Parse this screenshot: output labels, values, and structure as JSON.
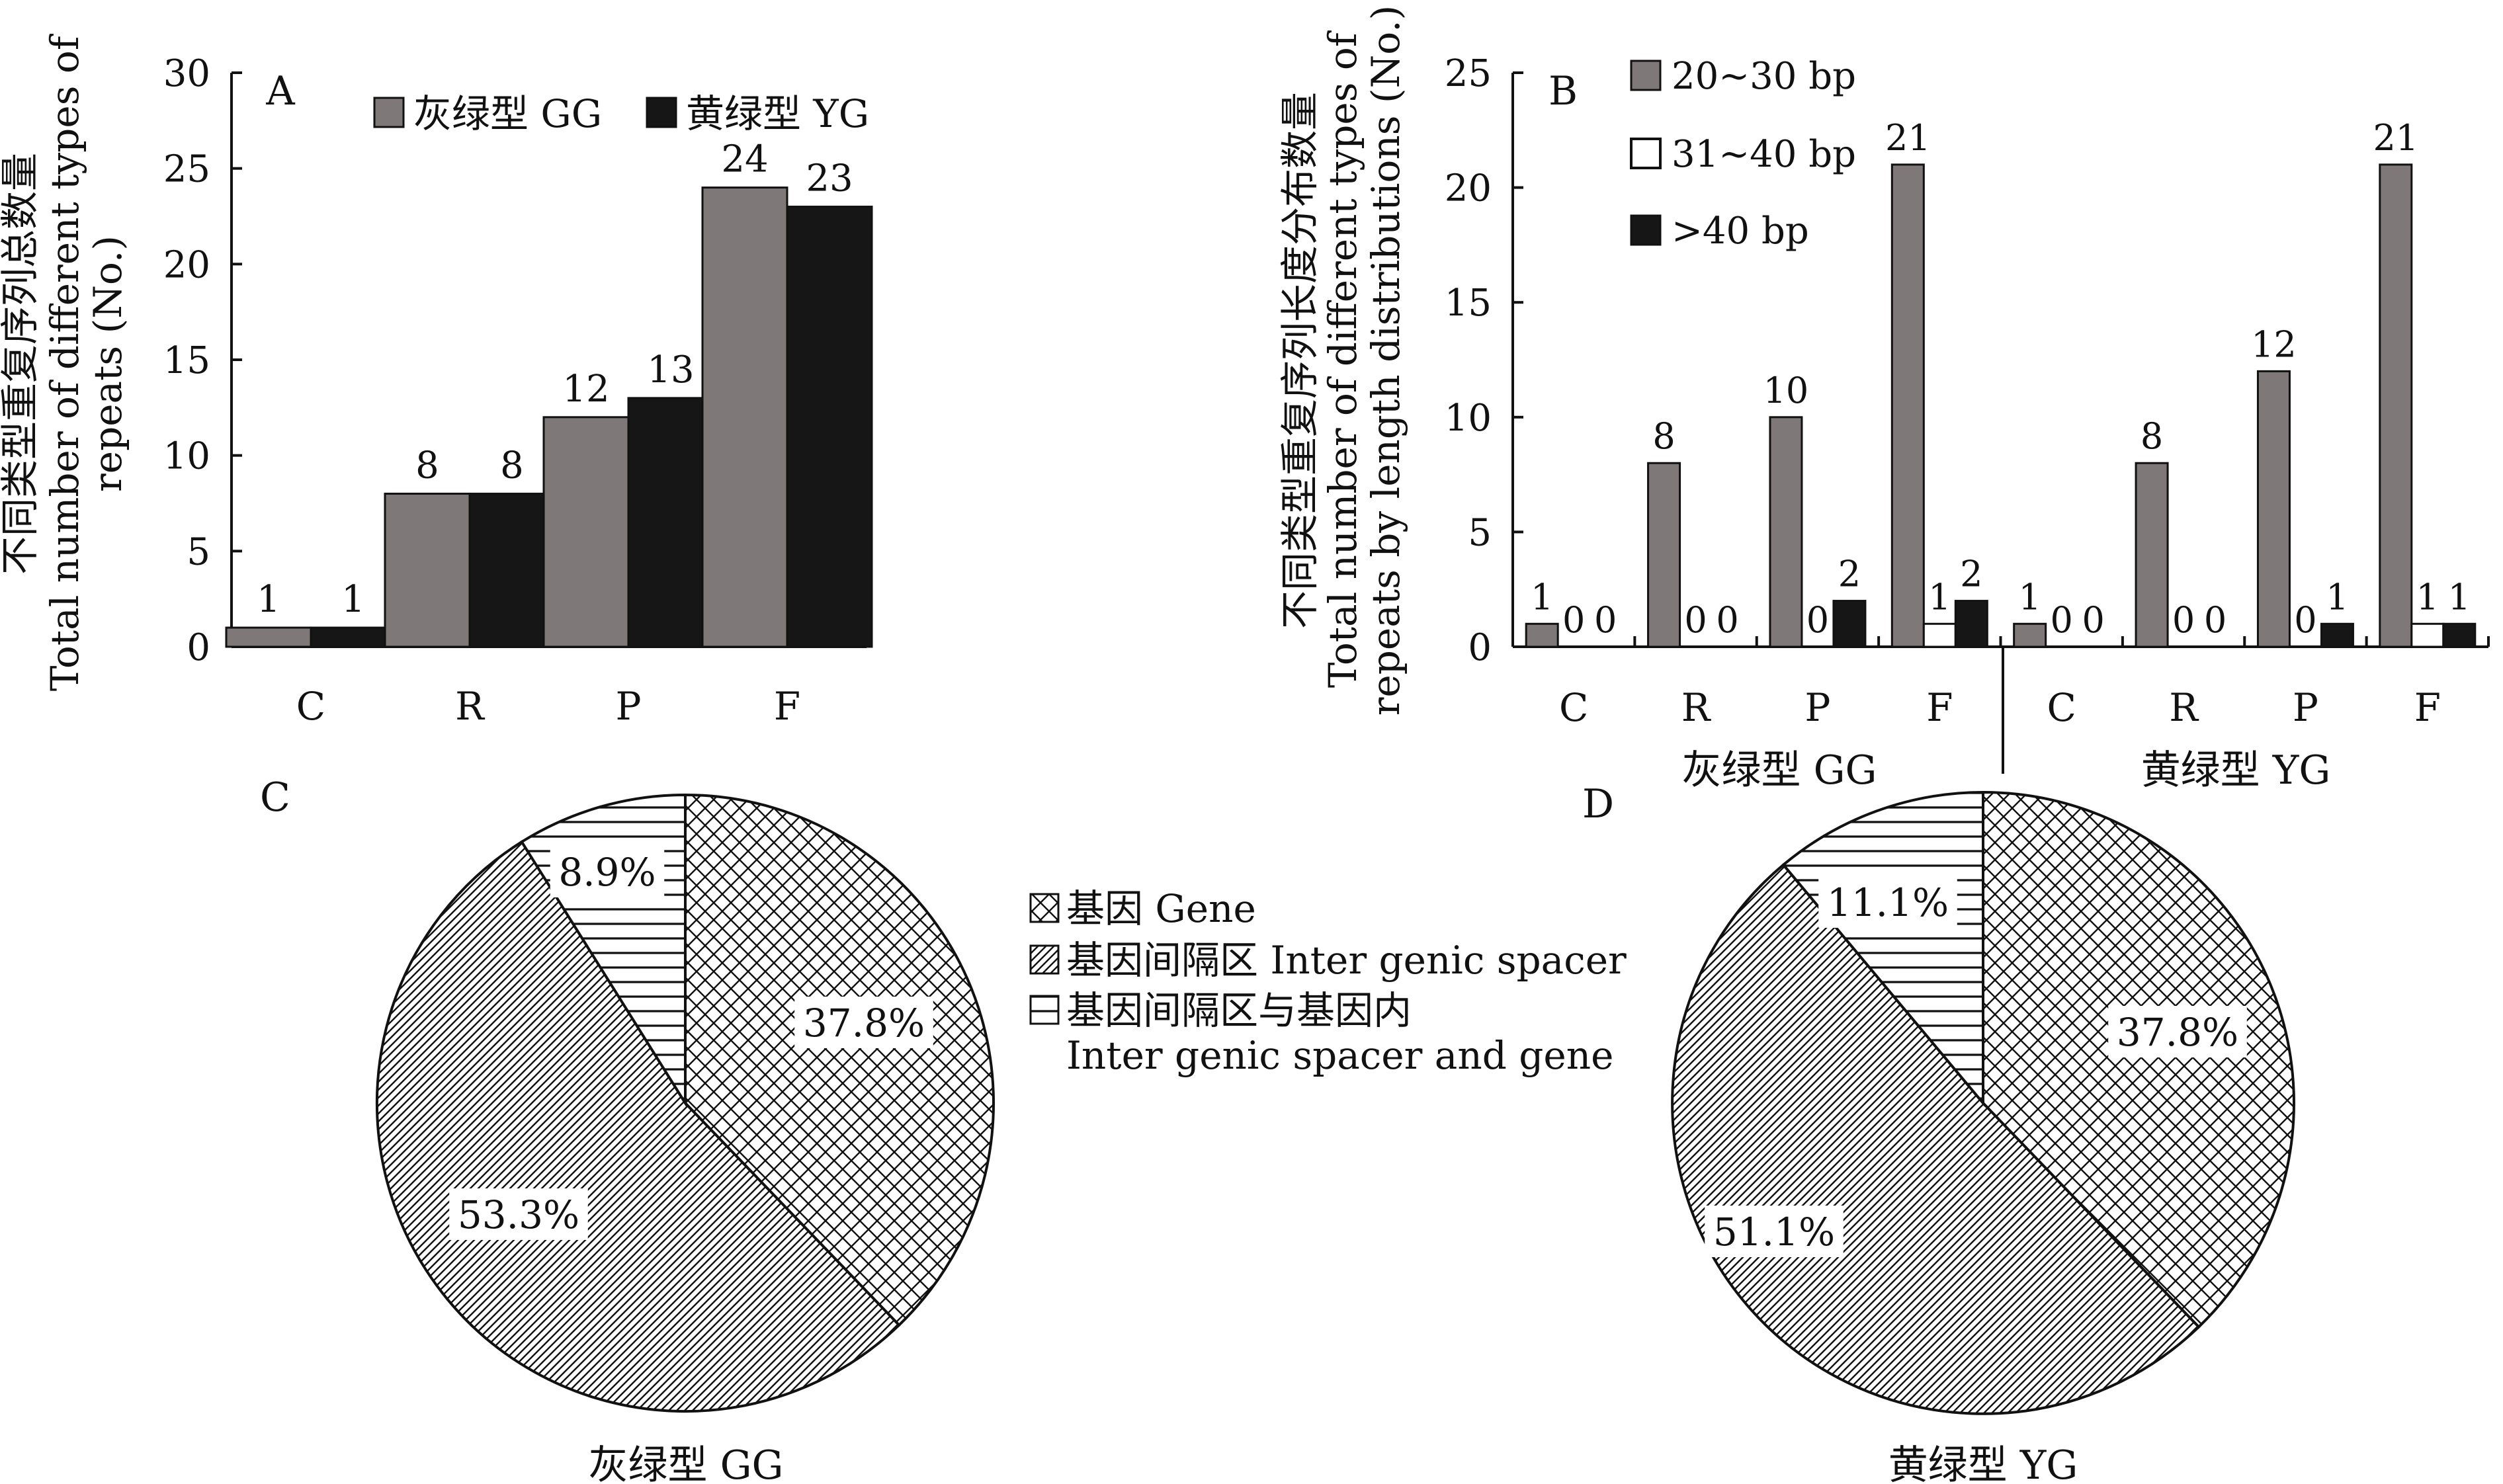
{
  "colors": {
    "gg": "#7f7878",
    "yg": "#161616",
    "white": "#ffffff",
    "stroke": "#111111"
  },
  "chart_data": [
    {
      "panel": "A",
      "type": "bar",
      "ylabel_cn": "不同类型重复序列总数量",
      "ylabel_en": [
        "Total number of  different types of",
        "repeats (No.)"
      ],
      "categories": [
        "C",
        "R",
        "P",
        "F"
      ],
      "ylim": [
        0,
        30
      ],
      "yticks": [
        0,
        5,
        10,
        15,
        20,
        25,
        30
      ],
      "series": [
        {
          "name": "灰绿型 GG",
          "values": [
            1,
            8,
            12,
            24
          ]
        },
        {
          "name": "黄绿型 YG",
          "values": [
            1,
            8,
            13,
            23
          ]
        }
      ]
    },
    {
      "panel": "B",
      "type": "bar",
      "ylabel_cn": "不同类型重复序列长度分布数量",
      "ylabel_en": [
        "Total number of  different types of",
        "repeats by length distributions (No.)"
      ],
      "categories": [
        "C",
        "R",
        "P",
        "F",
        "C",
        "R",
        "P",
        "F"
      ],
      "groups": [
        "灰绿型 GG",
        "黄绿型 YG"
      ],
      "ylim": [
        0,
        25
      ],
      "yticks": [
        0,
        5,
        10,
        15,
        20,
        25
      ],
      "series": [
        {
          "name": "20~30 bp",
          "values": [
            1,
            8,
            10,
            21,
            1,
            8,
            12,
            21
          ]
        },
        {
          "name": "31~40 bp",
          "values": [
            0,
            0,
            0,
            1,
            0,
            0,
            0,
            1
          ]
        },
        {
          "name": ">40 bp",
          "values": [
            0,
            0,
            2,
            2,
            0,
            0,
            1,
            1
          ]
        }
      ]
    },
    {
      "panel": "C",
      "type": "pie",
      "title": "灰绿型 GG",
      "slices": [
        {
          "name": "基因 Gene",
          "value": 37.8,
          "label": "37.8%"
        },
        {
          "name": "基因间隔区 Inter genic spacer",
          "value": 53.3,
          "label": "53.3%"
        },
        {
          "name": "基因间隔区与基因内 Inter genic spacer and gene",
          "value": 8.9,
          "label": "8.9%"
        }
      ]
    },
    {
      "panel": "D",
      "type": "pie",
      "title": "黄绿型 YG",
      "slices": [
        {
          "name": "基因 Gene",
          "value": 37.8,
          "label": "37.8%"
        },
        {
          "name": "基因间隔区 Inter genic spacer",
          "value": 51.1,
          "label": "51.1%"
        },
        {
          "name": "基因间隔区与基因内 Inter genic spacer and gene",
          "value": 11.1,
          "label": "11.1%"
        }
      ]
    }
  ],
  "pie_legend": {
    "gene": "基因 Gene",
    "intergenic": "基因间隔区 Inter genic spacer",
    "both_line1": "基因间隔区与基因内",
    "both_line2": "Inter genic spacer and gene"
  }
}
